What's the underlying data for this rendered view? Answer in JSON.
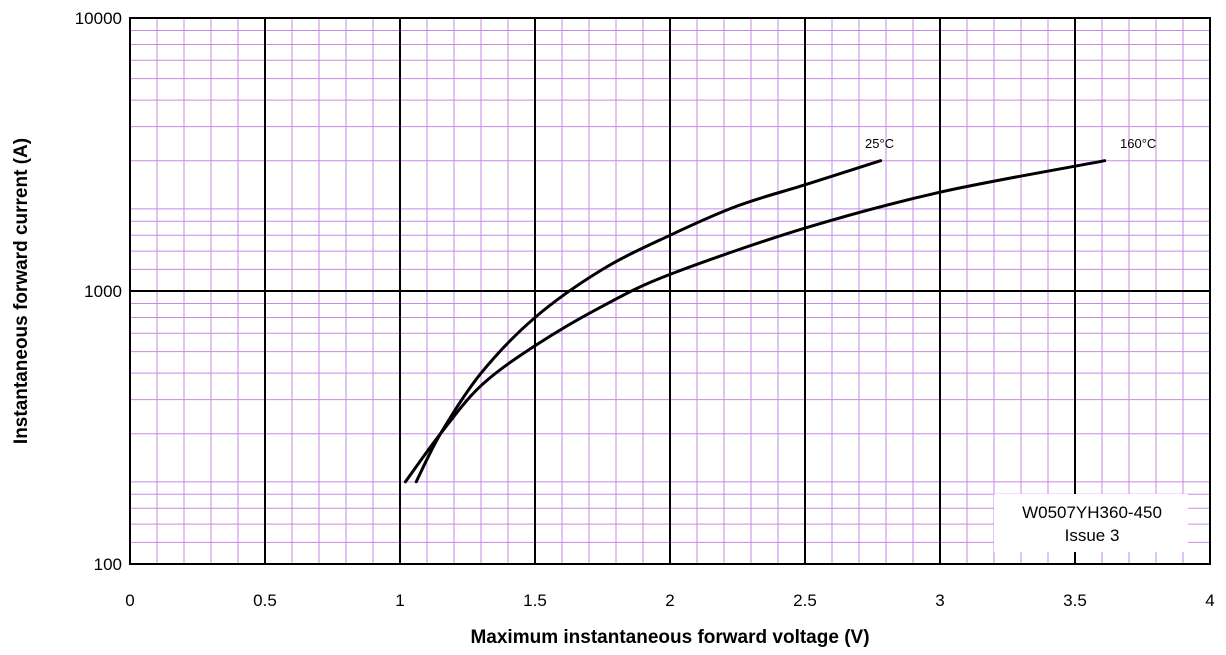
{
  "chart_data": {
    "type": "line",
    "title": "",
    "xlabel": "Maximum instantaneous forward voltage (V)",
    "ylabel": "Instantaneous forward current (A)",
    "xlim": [
      0,
      4
    ],
    "ylim": [
      100,
      10000
    ],
    "yscale": "log",
    "grid": true,
    "x_ticks": [
      "0",
      "0.5",
      "1",
      "1.5",
      "2",
      "2.5",
      "3",
      "3.5",
      "4"
    ],
    "y_ticks": [
      "100",
      "1000",
      "10000"
    ],
    "colors": {
      "grid_minor": "#c58be6",
      "grid_major": "#000000",
      "series": "#000000"
    },
    "series": [
      {
        "name": "25°C",
        "points": [
          [
            1.06,
            200
          ],
          [
            1.15,
            300
          ],
          [
            1.3,
            500
          ],
          [
            1.5,
            800
          ],
          [
            1.75,
            1200
          ],
          [
            2.0,
            1600
          ],
          [
            2.25,
            2050
          ],
          [
            2.5,
            2450
          ],
          [
            2.78,
            3000
          ]
        ]
      },
      {
        "name": "160°C",
        "points": [
          [
            1.02,
            200
          ],
          [
            1.15,
            300
          ],
          [
            1.3,
            450
          ],
          [
            1.5,
            630
          ],
          [
            1.75,
            880
          ],
          [
            2.0,
            1150
          ],
          [
            2.5,
            1700
          ],
          [
            3.0,
            2300
          ],
          [
            3.61,
            3000
          ]
        ]
      }
    ],
    "annotation": {
      "lines": [
        "W0507YH360-450",
        "Issue 3"
      ]
    }
  }
}
